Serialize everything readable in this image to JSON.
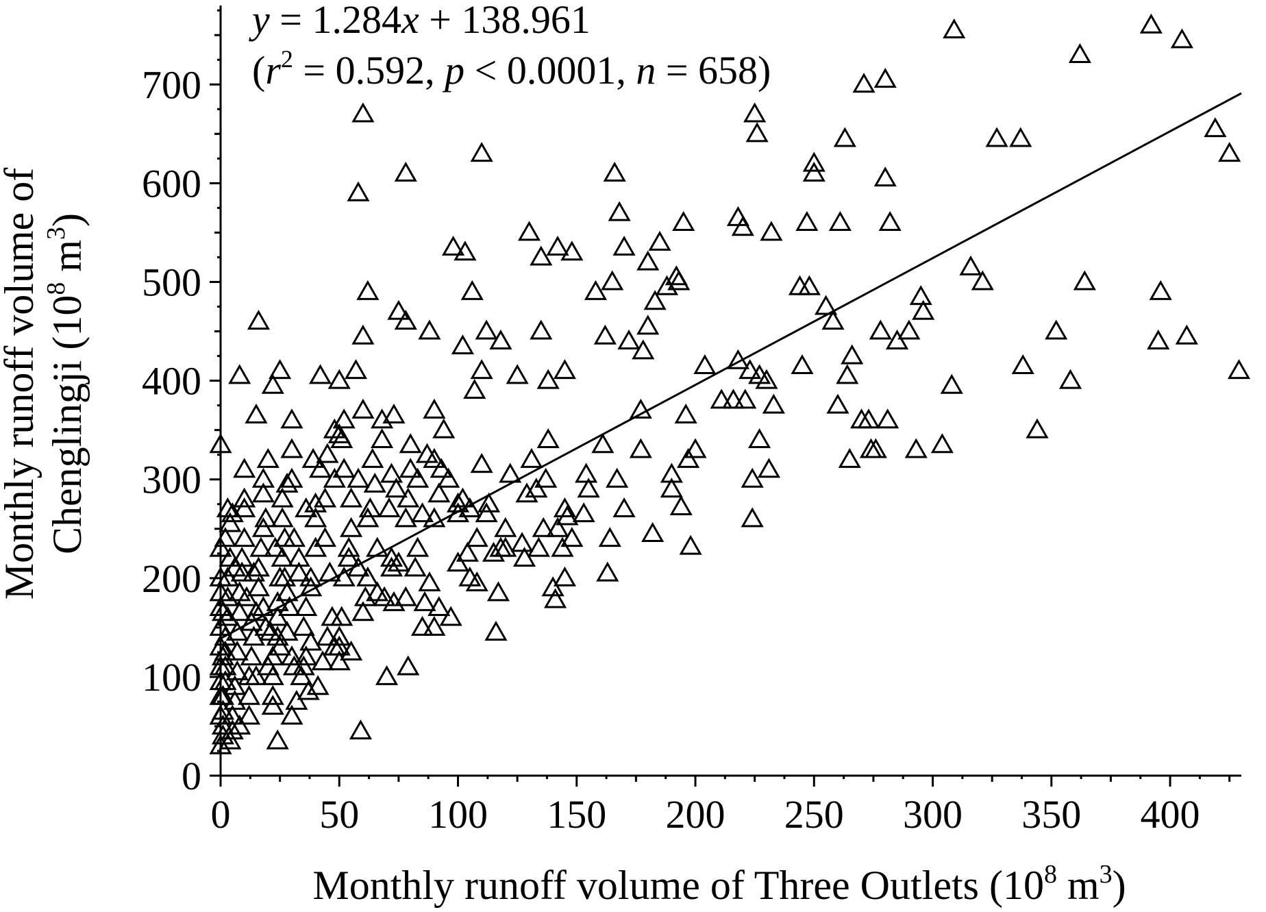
{
  "chart_data": {
    "type": "scatter",
    "title": "",
    "xlabel": "Monthly runoff volume of Three Outlets (10",
    "xlabel_sup": "8",
    "xlabel_tail": " m",
    "xlabel_sup2": "3",
    "xlabel_close": ")",
    "ylabel_line1": "Monthly runoff volume of",
    "ylabel_line2": "Chenglingji (10",
    "ylabel_sup": "8",
    "ylabel_tail": " m",
    "ylabel_sup2": "3",
    "ylabel_close": ")",
    "xlim": [
      0,
      430
    ],
    "ylim": [
      0,
      780
    ],
    "x_ticks": [
      0,
      50,
      100,
      150,
      200,
      250,
      300,
      350,
      400
    ],
    "x_tick_labels": [
      "0",
      "50",
      "100",
      "150",
      "200",
      "250",
      "300",
      "350",
      "400"
    ],
    "y_ticks": [
      0,
      100,
      200,
      300,
      400,
      500,
      600,
      700
    ],
    "y_tick_labels": [
      "0",
      "100",
      "200",
      "300",
      "400",
      "500",
      "600",
      "700"
    ],
    "marker": "open-triangle",
    "grid": false,
    "fit": {
      "slope": 1.284,
      "intercept": 138.961,
      "x_range": [
        0,
        430
      ]
    },
    "equation_line1": {
      "y": "y",
      "eq": " = 1.284",
      "x": "x",
      "rest": " + 138.961"
    },
    "equation_line2": {
      "open": "(",
      "r": "r",
      "r_sup": "2",
      "r_val": " = 0.592, ",
      "p": "p",
      "p_val": " < 0.0001, ",
      "n": "n",
      "n_val": " = 658)"
    },
    "points": [
      [
        0,
        335
      ],
      [
        0,
        150
      ],
      [
        1,
        120
      ],
      [
        2,
        240
      ],
      [
        3,
        270
      ],
      [
        5,
        265
      ],
      [
        8,
        405
      ],
      [
        10,
        280
      ],
      [
        15,
        365
      ],
      [
        16,
        460
      ],
      [
        18,
        285
      ],
      [
        22,
        395
      ],
      [
        25,
        410
      ],
      [
        30,
        360
      ],
      [
        42,
        405
      ],
      [
        50,
        400
      ],
      [
        58,
        590
      ],
      [
        60,
        670
      ],
      [
        60,
        445
      ],
      [
        62,
        490
      ],
      [
        75,
        470
      ],
      [
        78,
        460
      ],
      [
        78,
        610
      ],
      [
        88,
        450
      ],
      [
        98,
        535
      ],
      [
        103,
        530
      ],
      [
        106,
        490
      ],
      [
        110,
        630
      ],
      [
        112,
        450
      ],
      [
        102,
        435
      ],
      [
        107,
        390
      ],
      [
        110,
        410
      ],
      [
        118,
        440
      ],
      [
        125,
        405
      ],
      [
        130,
        550
      ],
      [
        135,
        525
      ],
      [
        135,
        450
      ],
      [
        138,
        400
      ],
      [
        142,
        535
      ],
      [
        145,
        410
      ],
      [
        148,
        530
      ],
      [
        158,
        490
      ],
      [
        162,
        445
      ],
      [
        165,
        500
      ],
      [
        166,
        610
      ],
      [
        168,
        570
      ],
      [
        170,
        535
      ],
      [
        172,
        440
      ],
      [
        178,
        430
      ],
      [
        180,
        520
      ],
      [
        180,
        455
      ],
      [
        183,
        480
      ],
      [
        185,
        540
      ],
      [
        188,
        495
      ],
      [
        192,
        505
      ],
      [
        193,
        500
      ],
      [
        195,
        560
      ],
      [
        200,
        330
      ],
      [
        196,
        365
      ],
      [
        197,
        320
      ],
      [
        204,
        415
      ],
      [
        218,
        420
      ],
      [
        218,
        565
      ],
      [
        220,
        555
      ],
      [
        223,
        410
      ],
      [
        225,
        670
      ],
      [
        226,
        650
      ],
      [
        227,
        405
      ],
      [
        230,
        400
      ],
      [
        232,
        550
      ],
      [
        233,
        375
      ],
      [
        244,
        495
      ],
      [
        245,
        415
      ],
      [
        247,
        560
      ],
      [
        248,
        495
      ],
      [
        250,
        620
      ],
      [
        250,
        610
      ],
      [
        255,
        475
      ],
      [
        258,
        460
      ],
      [
        260,
        375
      ],
      [
        261,
        560
      ],
      [
        263,
        645
      ],
      [
        264,
        405
      ],
      [
        265,
        320
      ],
      [
        266,
        425
      ],
      [
        270,
        360
      ],
      [
        271,
        700
      ],
      [
        273,
        360
      ],
      [
        274,
        330
      ],
      [
        276,
        330
      ],
      [
        278,
        450
      ],
      [
        280,
        605
      ],
      [
        280,
        705
      ],
      [
        281,
        360
      ],
      [
        282,
        560
      ],
      [
        285,
        440
      ],
      [
        290,
        450
      ],
      [
        293,
        330
      ],
      [
        295,
        485
      ],
      [
        296,
        470
      ],
      [
        304,
        335
      ],
      [
        308,
        395
      ],
      [
        309,
        755
      ],
      [
        316,
        515
      ],
      [
        321,
        500
      ],
      [
        327,
        645
      ],
      [
        337,
        645
      ],
      [
        338,
        415
      ],
      [
        344,
        350
      ],
      [
        352,
        450
      ],
      [
        358,
        400
      ],
      [
        362,
        730
      ],
      [
        364,
        500
      ],
      [
        392,
        760
      ],
      [
        395,
        440
      ],
      [
        396,
        490
      ],
      [
        405,
        745
      ],
      [
        407,
        445
      ],
      [
        419,
        655
      ],
      [
        425,
        630
      ],
      [
        429,
        410
      ],
      [
        227,
        340
      ],
      [
        224,
        300
      ],
      [
        224,
        260
      ],
      [
        216,
        380
      ],
      [
        221,
        380
      ],
      [
        211,
        380
      ],
      [
        231,
        310
      ],
      [
        198,
        232
      ],
      [
        194,
        272
      ],
      [
        190,
        290
      ],
      [
        190,
        305
      ],
      [
        182,
        245
      ],
      [
        177,
        330
      ],
      [
        177,
        370
      ],
      [
        167,
        300
      ],
      [
        170,
        270
      ],
      [
        163,
        205
      ],
      [
        164,
        240
      ],
      [
        161,
        335
      ],
      [
        154,
        305
      ],
      [
        155,
        290
      ],
      [
        153,
        265
      ],
      [
        148,
        240
      ],
      [
        146,
        262
      ],
      [
        145,
        270
      ],
      [
        144,
        230
      ],
      [
        145,
        200
      ],
      [
        141,
        178
      ],
      [
        140,
        190
      ],
      [
        142,
        250
      ],
      [
        138,
        340
      ],
      [
        137,
        300
      ],
      [
        136,
        250
      ],
      [
        134,
        230
      ],
      [
        133,
        290
      ],
      [
        131,
        320
      ],
      [
        129,
        285
      ],
      [
        127,
        235
      ],
      [
        128,
        220
      ],
      [
        122,
        305
      ],
      [
        120,
        250
      ],
      [
        120,
        230
      ],
      [
        117,
        185
      ],
      [
        116,
        145
      ],
      [
        118,
        230
      ],
      [
        115,
        225
      ],
      [
        112,
        265
      ],
      [
        113,
        275
      ],
      [
        108,
        240
      ],
      [
        110,
        315
      ],
      [
        105,
        270
      ],
      [
        102,
        280
      ],
      [
        100,
        265
      ],
      [
        105,
        200
      ],
      [
        100,
        215
      ],
      [
        104,
        225
      ],
      [
        108,
        195
      ],
      [
        97,
        160
      ],
      [
        93,
        310
      ],
      [
        94,
        350
      ],
      [
        90,
        320
      ],
      [
        90,
        370
      ],
      [
        92,
        285
      ],
      [
        90,
        260
      ],
      [
        88,
        195
      ],
      [
        92,
        170
      ],
      [
        90,
        150
      ],
      [
        85,
        150
      ],
      [
        86,
        175
      ],
      [
        82,
        210
      ],
      [
        83,
        300
      ],
      [
        80,
        310
      ],
      [
        80,
        335
      ],
      [
        78,
        260
      ],
      [
        79,
        280
      ],
      [
        78,
        180
      ],
      [
        79,
        110
      ],
      [
        74,
        290
      ],
      [
        72,
        305
      ],
      [
        71,
        270
      ],
      [
        72,
        220
      ],
      [
        72,
        210
      ],
      [
        73,
        175
      ],
      [
        69,
        180
      ],
      [
        70,
        100
      ],
      [
        68,
        340
      ],
      [
        64,
        320
      ],
      [
        65,
        295
      ],
      [
        63,
        270
      ],
      [
        66,
        230
      ],
      [
        62,
        200
      ],
      [
        61,
        180
      ],
      [
        60,
        165
      ],
      [
        59,
        45
      ],
      [
        58,
        300
      ],
      [
        55,
        280
      ],
      [
        54,
        230
      ],
      [
        54,
        220
      ],
      [
        52,
        200
      ],
      [
        51,
        160
      ],
      [
        50,
        140
      ],
      [
        50,
        130
      ],
      [
        52,
        310
      ],
      [
        51,
        340
      ],
      [
        52,
        360
      ],
      [
        45,
        325
      ],
      [
        42,
        310
      ],
      [
        44,
        280
      ],
      [
        40,
        275
      ],
      [
        40,
        260
      ],
      [
        40,
        230
      ],
      [
        38,
        200
      ],
      [
        38,
        190
      ],
      [
        36,
        170
      ],
      [
        35,
        150
      ],
      [
        36,
        120
      ],
      [
        34,
        100
      ],
      [
        32,
        75
      ],
      [
        30,
        60
      ],
      [
        30,
        300
      ],
      [
        30,
        330
      ],
      [
        28,
        295
      ],
      [
        26,
        280
      ],
      [
        26,
        260
      ],
      [
        26,
        220
      ],
      [
        25,
        200
      ],
      [
        24,
        175
      ],
      [
        24,
        160
      ],
      [
        24,
        140
      ],
      [
        22,
        120
      ],
      [
        22,
        100
      ],
      [
        22,
        80
      ],
      [
        22,
        70
      ],
      [
        24,
        35
      ],
      [
        20,
        320
      ],
      [
        18,
        300
      ],
      [
        18,
        250
      ],
      [
        17,
        230
      ],
      [
        16,
        210
      ],
      [
        16,
        190
      ],
      [
        15,
        165
      ],
      [
        14,
        140
      ],
      [
        13,
        120
      ],
      [
        12,
        100
      ],
      [
        12,
        80
      ],
      [
        12,
        60
      ],
      [
        10,
        310
      ],
      [
        10,
        270
      ],
      [
        10,
        240
      ],
      [
        9,
        220
      ],
      [
        9,
        205
      ],
      [
        8,
        185
      ],
      [
        8,
        165
      ],
      [
        7,
        145
      ],
      [
        7,
        125
      ],
      [
        7,
        105
      ],
      [
        6,
        90
      ],
      [
        6,
        75
      ],
      [
        5,
        60
      ],
      [
        5,
        45
      ],
      [
        4,
        35
      ],
      [
        4,
        255
      ],
      [
        4,
        220
      ],
      [
        3,
        200
      ],
      [
        3,
        180
      ],
      [
        3,
        160
      ],
      [
        2,
        140
      ],
      [
        2,
        125
      ],
      [
        2,
        110
      ],
      [
        2,
        95
      ],
      [
        1,
        80
      ],
      [
        1,
        65
      ],
      [
        1,
        50
      ],
      [
        1,
        40
      ],
      [
        0,
        30
      ],
      [
        0,
        230
      ],
      [
        0,
        200
      ],
      [
        0,
        185
      ],
      [
        0,
        170
      ],
      [
        0,
        130
      ],
      [
        0,
        110
      ],
      [
        0,
        95
      ],
      [
        0,
        80
      ],
      [
        0,
        60
      ],
      [
        1,
        165
      ],
      [
        6,
        210
      ],
      [
        11,
        180
      ],
      [
        14,
        205
      ],
      [
        19,
        150
      ],
      [
        28,
        145
      ],
      [
        30,
        120
      ],
      [
        20,
        110
      ],
      [
        15,
        100
      ],
      [
        8,
        50
      ],
      [
        28,
        185
      ],
      [
        33,
        205
      ],
      [
        38,
        135
      ],
      [
        45,
        140
      ],
      [
        48,
        130
      ],
      [
        50,
        115
      ],
      [
        55,
        125
      ],
      [
        47,
        160
      ],
      [
        43,
        115
      ],
      [
        41,
        90
      ],
      [
        37,
        85
      ],
      [
        35,
        110
      ],
      [
        46,
        205
      ],
      [
        58,
        210
      ],
      [
        66,
        185
      ],
      [
        100,
        275
      ],
      [
        96,
        300
      ],
      [
        87,
        325
      ],
      [
        85,
        265
      ],
      [
        60,
        370
      ],
      [
        68,
        360
      ],
      [
        73,
        365
      ],
      [
        83,
        230
      ],
      [
        75,
        215
      ],
      [
        57,
        410
      ],
      [
        50,
        345
      ],
      [
        48,
        350
      ],
      [
        44,
        240
      ],
      [
        55,
        250
      ],
      [
        62,
        260
      ],
      [
        48,
        300
      ],
      [
        39,
        320
      ],
      [
        36,
        270
      ],
      [
        31,
        240
      ],
      [
        27,
        240
      ],
      [
        19,
        260
      ],
      [
        23,
        230
      ],
      [
        27,
        200
      ],
      [
        33,
        220
      ],
      [
        29,
        170
      ],
      [
        18,
        170
      ],
      [
        13,
        155
      ],
      [
        21,
        145
      ],
      [
        25,
        130
      ],
      [
        31,
        110
      ]
    ]
  }
}
